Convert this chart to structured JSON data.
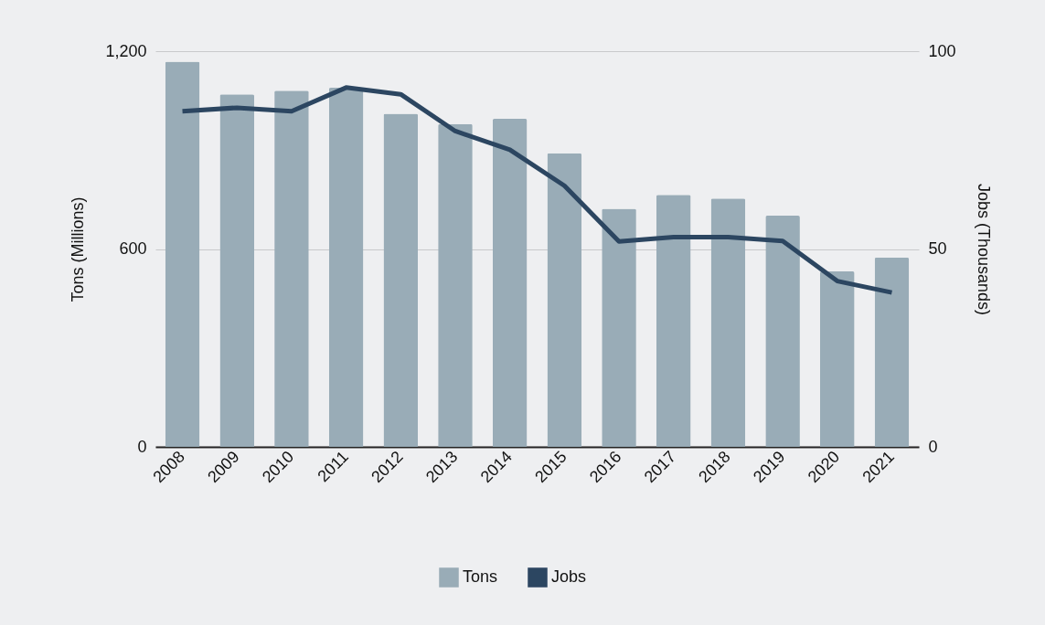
{
  "chart_data": {
    "type": "bar",
    "categories": [
      "2008",
      "2009",
      "2010",
      "2011",
      "2012",
      "2013",
      "2014",
      "2015",
      "2016",
      "2017",
      "2018",
      "2019",
      "2020",
      "2021"
    ],
    "series": [
      {
        "name": "Tons",
        "color": "#99acb7",
        "values": [
          1168,
          1069,
          1080,
          1089,
          1010,
          979,
          995,
          890,
          722,
          764,
          753,
          701,
          532,
          574
        ]
      },
      {
        "name": "Jobs",
        "type": "line",
        "axis": "y2",
        "color": "#2c4661",
        "values": [
          84.8,
          85.7,
          84.8,
          90.8,
          89.1,
          79.8,
          75.1,
          66.0,
          51.9,
          53.0,
          53.0,
          52.0,
          41.9,
          39.0
        ]
      }
    ],
    "ylabel": "Tons (Millions)",
    "y2label": "Jobs (Thousands)",
    "ylim": [
      0,
      1200
    ],
    "yticks": [
      0,
      600,
      {
        "value": 1200,
        "label": "1,200"
      }
    ],
    "y2lim": [
      0,
      100
    ],
    "y2ticks": [
      0,
      50,
      100
    ],
    "grid": "y",
    "legend": "bottom"
  }
}
